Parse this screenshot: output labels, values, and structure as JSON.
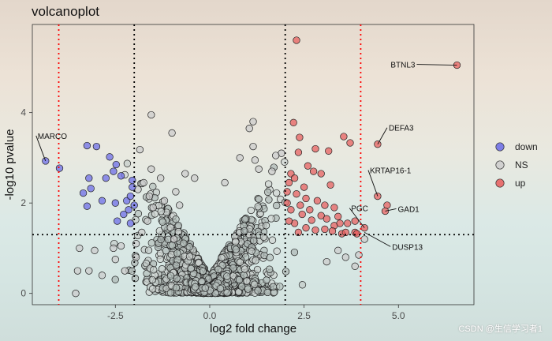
{
  "chart_data": {
    "type": "scatter",
    "title": "volcanoplot",
    "xlabel": "log2 fold change",
    "ylabel": "-log10 pvalue",
    "xlim": [
      -4.7,
      7.0
    ],
    "ylim": [
      -0.25,
      5.95
    ],
    "x_ticks": [
      {
        "value": -2.5,
        "label": "-2.5"
      },
      {
        "value": 0,
        "label": "0.0"
      },
      {
        "value": 2.5,
        "label": "2.5"
      },
      {
        "value": 5,
        "label": "5.0"
      }
    ],
    "y_ticks": [
      {
        "value": 0,
        "label": "0"
      },
      {
        "value": 2,
        "label": "2"
      },
      {
        "value": 4,
        "label": "4"
      }
    ],
    "thresholds": {
      "fc_inner": [
        -2,
        2
      ],
      "fc_outer": [
        -4,
        4
      ],
      "pvalue_line": 1.3,
      "inner_color": "#000000",
      "outer_color": "#ff0000"
    },
    "legend": {
      "position": "right",
      "items": [
        {
          "label": "down",
          "color": "#6a6ae8"
        },
        {
          "label": "NS",
          "color": "#cccccc"
        },
        {
          "label": "up",
          "color": "#e85c5c"
        }
      ]
    },
    "series": [
      {
        "name": "down",
        "color": "#6a6ae8",
        "points": [
          [
            -4.35,
            2.93
          ],
          [
            -3.98,
            2.77
          ],
          [
            -3.25,
            3.27
          ],
          [
            -3.0,
            3.25
          ],
          [
            -2.65,
            3.02
          ],
          [
            -2.75,
            2.55
          ],
          [
            -2.48,
            2.85
          ],
          [
            -2.55,
            2.7
          ],
          [
            -2.35,
            2.6
          ],
          [
            -2.05,
            2.5
          ],
          [
            -3.2,
            2.55
          ],
          [
            -3.15,
            2.32
          ],
          [
            -3.35,
            2.22
          ],
          [
            -2.85,
            2.05
          ],
          [
            -2.5,
            2.0
          ],
          [
            -3.25,
            1.93
          ],
          [
            -2.2,
            2.05
          ],
          [
            -2.15,
            1.85
          ],
          [
            -2.1,
            2.15
          ],
          [
            -2.0,
            1.95
          ],
          [
            -2.45,
            1.6
          ],
          [
            -2.05,
            2.35
          ],
          [
            -2.28,
            1.75
          ],
          [
            -2.1,
            1.55
          ]
        ]
      },
      {
        "name": "up",
        "color": "#e85c5c",
        "points": [
          [
            6.55,
            5.05
          ],
          [
            2.3,
            5.6
          ],
          [
            4.45,
            3.3
          ],
          [
            2.22,
            3.78
          ],
          [
            3.55,
            3.47
          ],
          [
            3.72,
            3.33
          ],
          [
            2.38,
            3.45
          ],
          [
            2.35,
            3.12
          ],
          [
            2.8,
            3.2
          ],
          [
            3.15,
            3.15
          ],
          [
            4.7,
            1.95
          ],
          [
            4.65,
            1.82
          ],
          [
            4.45,
            2.15
          ],
          [
            4.1,
            1.45
          ],
          [
            3.85,
            1.35
          ],
          [
            3.3,
            1.5
          ],
          [
            3.5,
            1.32
          ],
          [
            2.6,
            2.82
          ],
          [
            2.75,
            2.7
          ],
          [
            2.95,
            2.65
          ],
          [
            2.15,
            2.65
          ],
          [
            2.25,
            2.55
          ],
          [
            2.5,
            2.35
          ],
          [
            2.1,
            2.45
          ],
          [
            2.05,
            2.25
          ],
          [
            2.3,
            2.2
          ],
          [
            2.55,
            2.1
          ],
          [
            2.85,
            2.05
          ],
          [
            3.05,
            1.95
          ],
          [
            3.3,
            1.9
          ],
          [
            3.2,
            2.4
          ],
          [
            2.4,
            1.95
          ],
          [
            2.15,
            1.85
          ],
          [
            2.45,
            1.75
          ],
          [
            2.7,
            1.62
          ],
          [
            2.95,
            1.72
          ],
          [
            3.4,
            1.7
          ],
          [
            3.65,
            1.55
          ],
          [
            3.85,
            1.6
          ],
          [
            2.25,
            1.55
          ],
          [
            2.55,
            1.45
          ],
          [
            2.8,
            1.4
          ],
          [
            3.05,
            1.42
          ],
          [
            3.25,
            1.38
          ],
          [
            3.6,
            1.35
          ],
          [
            3.9,
            1.32
          ],
          [
            2.1,
            1.6
          ],
          [
            2.35,
            1.35
          ],
          [
            3.45,
            1.55
          ],
          [
            2.65,
            1.85
          ],
          [
            3.1,
            1.65
          ],
          [
            2.05,
            2.0
          ]
        ]
      },
      {
        "name": "NS",
        "color": "#cccccc",
        "points": [
          [
            -1.55,
            3.95
          ],
          [
            -1.0,
            3.55
          ],
          [
            -1.85,
            3.18
          ],
          [
            -1.55,
            2.75
          ],
          [
            -1.75,
            2.45
          ],
          [
            -1.3,
            2.55
          ],
          [
            -0.65,
            2.65
          ],
          [
            -0.9,
            2.25
          ],
          [
            -1.9,
            2.3
          ],
          [
            -1.6,
            2.15
          ],
          [
            -1.2,
            2.05
          ],
          [
            -1.5,
            1.9
          ],
          [
            -0.8,
            1.95
          ],
          [
            -3.45,
            1.0
          ],
          [
            -3.05,
            0.95
          ],
          [
            -3.2,
            0.5
          ],
          [
            -2.5,
            0.75
          ],
          [
            -2.85,
            0.4
          ],
          [
            -2.25,
            0.5
          ],
          [
            -3.5,
            0.5
          ],
          [
            -3.55,
            0.0
          ],
          [
            -2.55,
            1.0
          ],
          [
            -2.35,
            1.05
          ],
          [
            -1.95,
            0.8
          ],
          [
            1.15,
            3.8
          ],
          [
            1.9,
            3.1
          ],
          [
            1.15,
            3.25
          ],
          [
            0.8,
            3.0
          ],
          [
            1.2,
            2.95
          ],
          [
            1.3,
            2.75
          ],
          [
            1.75,
            3.05
          ],
          [
            -0.4,
            2.55
          ],
          [
            0.4,
            2.45
          ],
          [
            1.65,
            2.7
          ],
          [
            3.4,
            0.95
          ],
          [
            3.6,
            0.8
          ],
          [
            3.95,
            0.85
          ],
          [
            3.85,
            0.6
          ],
          [
            4.1,
            1.2
          ],
          [
            3.1,
            0.7
          ],
          [
            1.05,
            3.65
          ],
          [
            -1.65,
            1.6
          ],
          [
            -1.8,
            1.35
          ],
          [
            -1.95,
            1.1
          ],
          [
            -0.95,
            1.2
          ]
        ]
      }
    ],
    "annotations": [
      {
        "label": "BTNL3",
        "x": 6.55,
        "y": 5.05
      },
      {
        "label": "MARCO",
        "x": -4.35,
        "y": 2.93
      },
      {
        "label": "DEFA3",
        "x": 4.45,
        "y": 3.3
      },
      {
        "label": "KRTAP16-1",
        "x": 4.45,
        "y": 2.15
      },
      {
        "label": "GAD1",
        "x": 4.65,
        "y": 1.82
      },
      {
        "label": "PGC",
        "x": 4.1,
        "y": 1.45
      },
      {
        "label": "DUSP13",
        "x": 4.1,
        "y": 1.35
      }
    ],
    "annotation_style": {
      "connector_color": "#111111"
    },
    "background_dense_NS": true
  },
  "watermark": "CSDN @生信学习者1"
}
